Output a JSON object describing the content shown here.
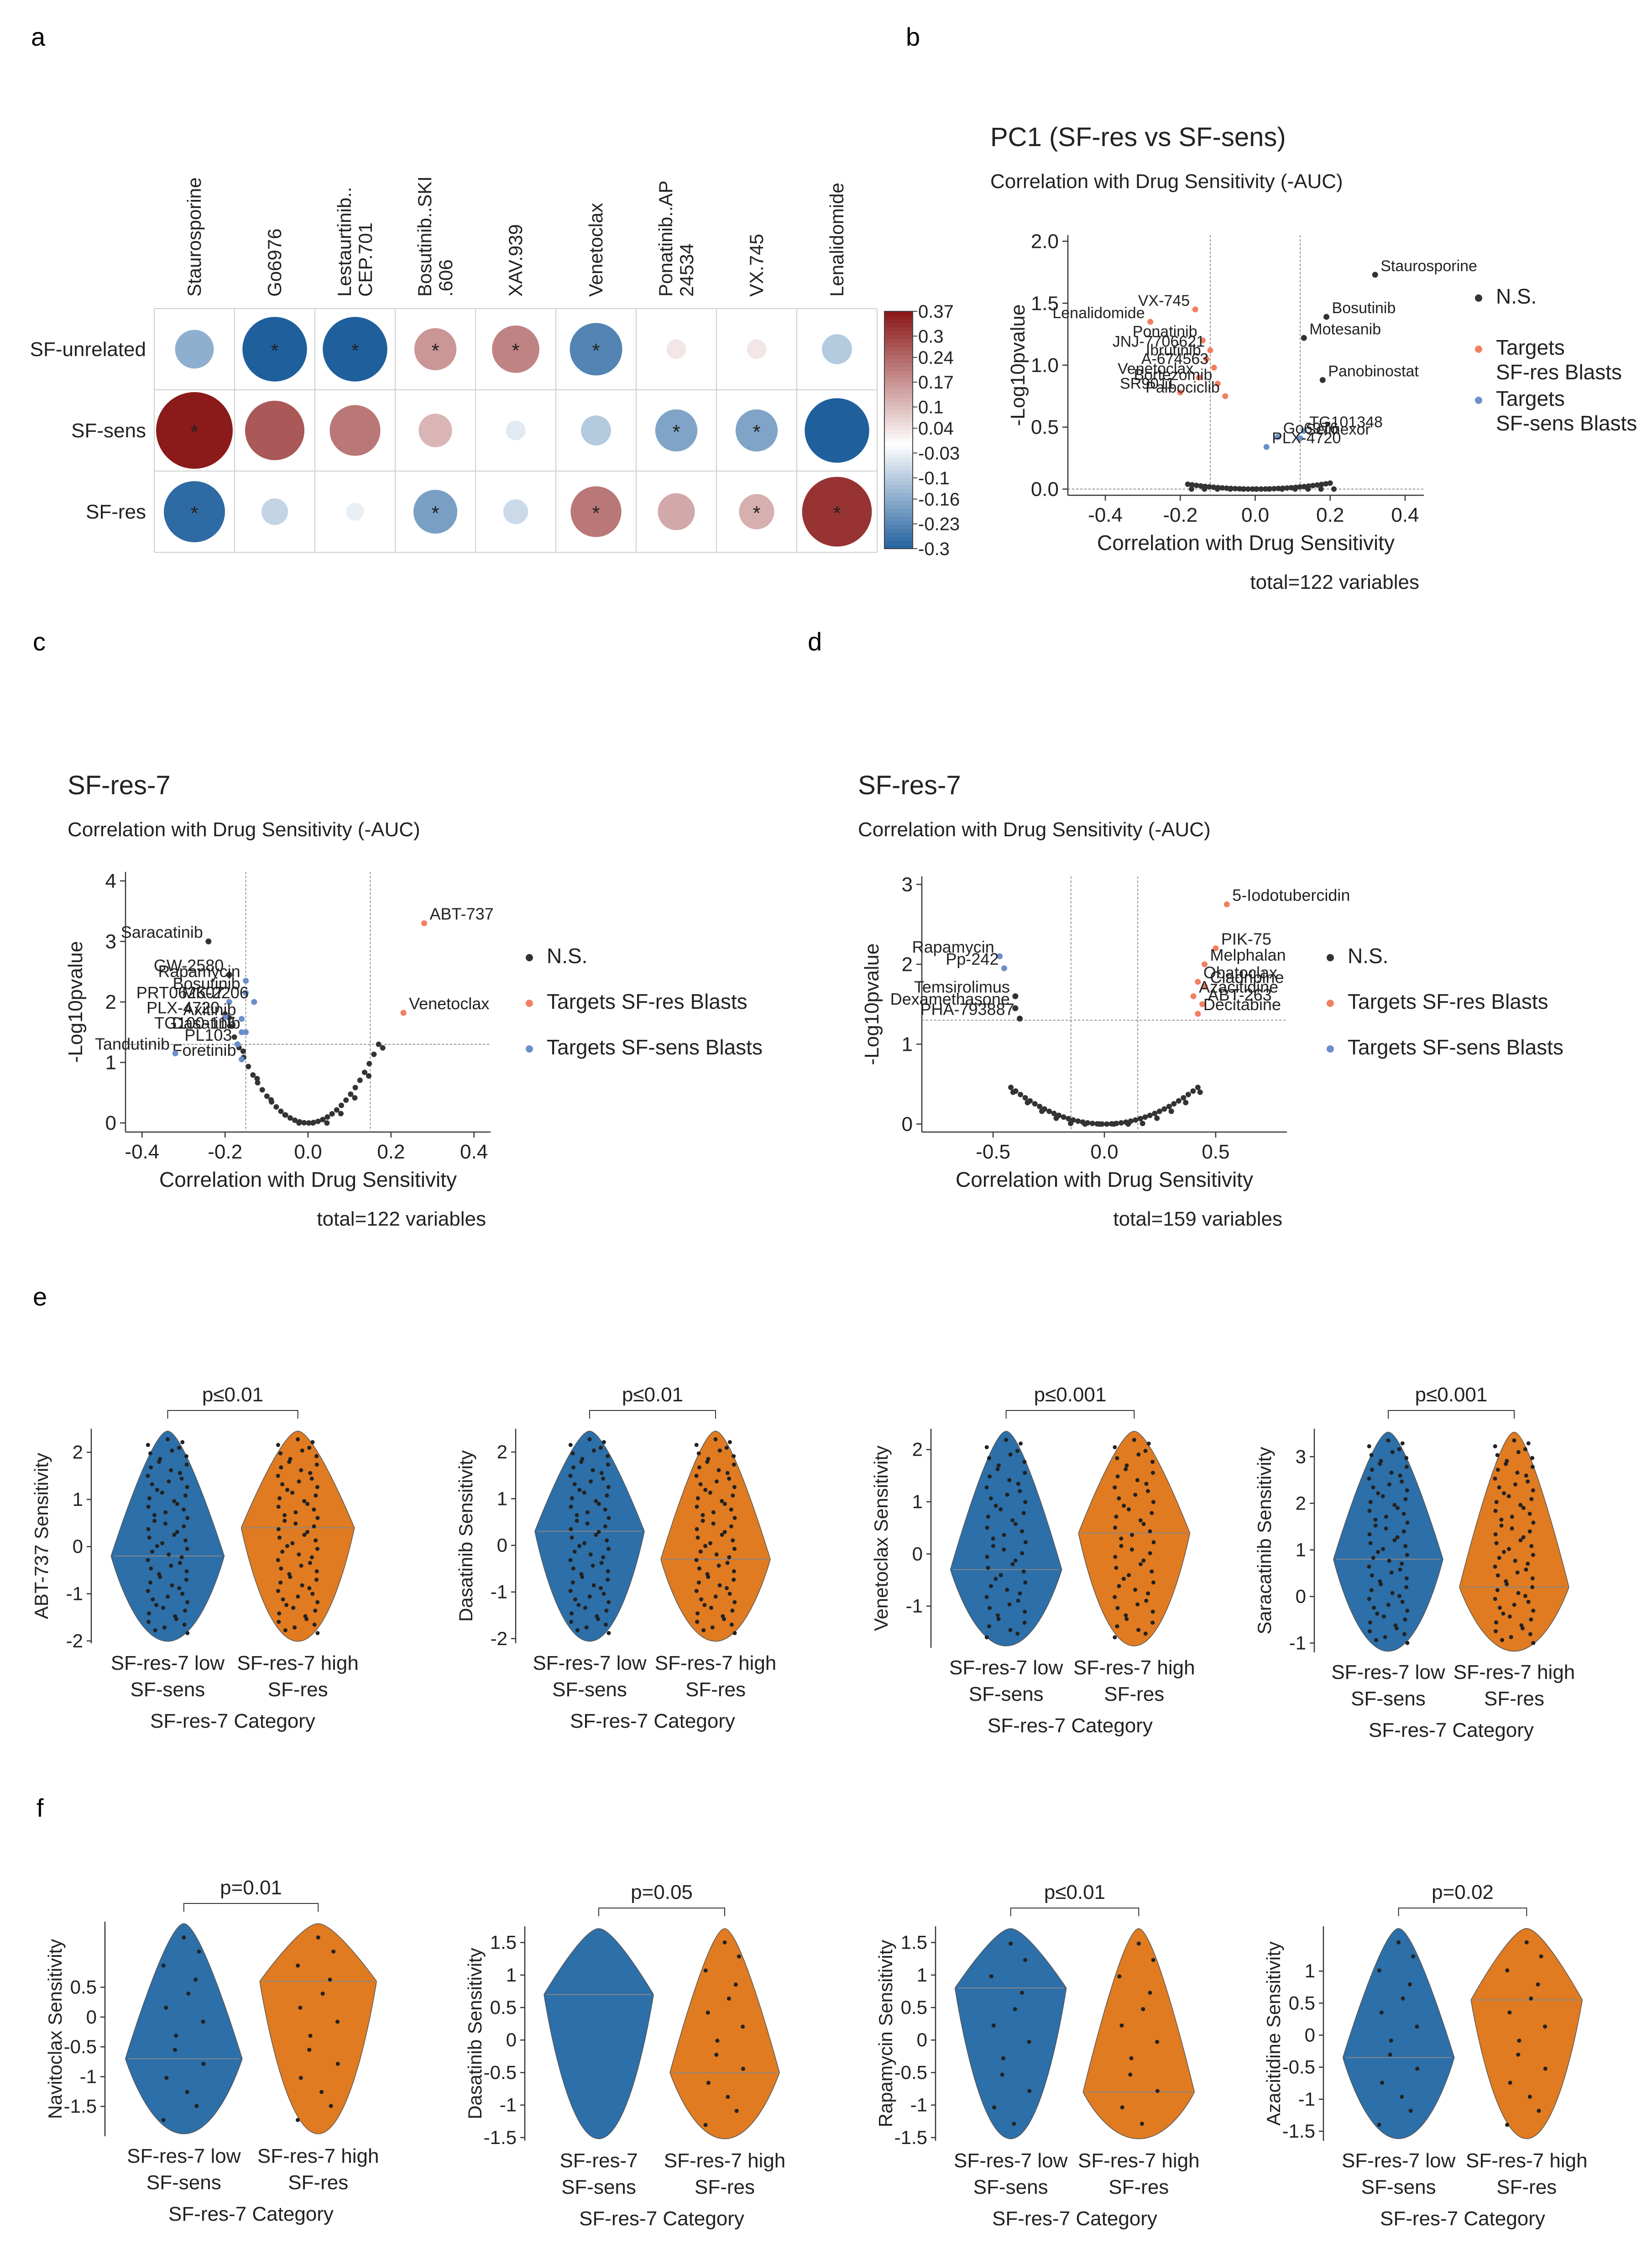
{
  "panel_letters": [
    "a",
    "b",
    "c",
    "d",
    "e",
    "f"
  ],
  "colors": {
    "blue": "#2d6fa8",
    "orange": "#e07b21",
    "ns": "#333333",
    "res_target": "#f08060",
    "sens_target": "#6b8fc9",
    "heat_pos": "#8b1a1a",
    "heat_neg": "#1f5f9c"
  },
  "chart_data": [
    {
      "panel": "a",
      "type": "heatmap",
      "rows": [
        "SF-unrelated",
        "SF-sens",
        "SF-res"
      ],
      "columns": [
        "Staurosporine",
        "Go6976",
        "Lestaurtinib..\nCEP.701",
        "Bosutinib..SKI\n.606",
        "XAV.939",
        "Venetoclax",
        "Ponatinib..AP\n24534",
        "VX.745",
        "Lenalidomide"
      ],
      "values": [
        [
          -0.15,
          -0.3,
          -0.3,
          0.17,
          0.2,
          -0.23,
          0.04,
          0.04,
          -0.1
        ],
        [
          0.37,
          0.27,
          0.22,
          0.12,
          -0.04,
          -0.1,
          -0.17,
          -0.17,
          -0.3
        ],
        [
          -0.28,
          -0.08,
          -0.03,
          -0.18,
          -0.07,
          0.22,
          0.14,
          0.13,
          0.33
        ]
      ],
      "significant": [
        [
          false,
          true,
          true,
          true,
          true,
          true,
          false,
          false,
          false
        ],
        [
          true,
          false,
          false,
          false,
          false,
          false,
          true,
          true,
          false
        ],
        [
          true,
          false,
          false,
          true,
          false,
          true,
          false,
          true,
          true
        ]
      ],
      "colorbar_ticks": [
        "0.37",
        "0.3",
        "0.24",
        "0.17",
        "0.1",
        "0.04",
        "-0.03",
        "-0.1",
        "-0.16",
        "-0.23",
        "-0.3"
      ],
      "colorbar_range": [
        -0.3,
        0.37
      ],
      "star": "*"
    },
    {
      "panel": "b",
      "type": "scatter",
      "title": "PC1 (SF-res vs SF-sens)",
      "subtitle": "Correlation with Drug Sensitivity (-AUC)",
      "xlabel": "Correlation with Drug Sensitivity",
      "ylabel": "-Log10pvalue",
      "xlim": [
        -0.5,
        0.45
      ],
      "ylim": [
        -0.05,
        2.05
      ],
      "xticks": [
        -0.4,
        -0.2,
        0.0,
        0.2,
        0.4
      ],
      "xtick_labels": [
        "-0.4",
        "-0.2",
        "0.0",
        "0.2",
        "0.4"
      ],
      "yticks": [
        0.0,
        0.5,
        1.0,
        1.5,
        2.0
      ],
      "ytick_labels": [
        "0.0",
        "0.5",
        "1.0",
        "1.5",
        "2.0"
      ],
      "vlines": [
        -0.12,
        0.12
      ],
      "hline": 0.0,
      "total": "total=122 variables",
      "legend": [
        {
          "label": "N.S.",
          "color": "#333333"
        },
        {
          "label": "Targets\nSF-res Blasts",
          "color": "#f08060"
        },
        {
          "label": "Targets\nSF-sens Blasts",
          "color": "#6b8fc9"
        }
      ],
      "ns_curve": {
        "a": 1.2,
        "b": 0.35,
        "xmin": -0.18,
        "xmax": 0.2,
        "n": 34
      },
      "points": [
        {
          "x": 0.32,
          "y": 1.73,
          "label": "Staurosporine",
          "group": "ns"
        },
        {
          "x": -0.16,
          "y": 1.45,
          "label": "VX-745",
          "group": "res"
        },
        {
          "x": -0.28,
          "y": 1.35,
          "label": "Lenalidomide",
          "group": "res"
        },
        {
          "x": -0.14,
          "y": 1.2,
          "label": "Ponatinib",
          "group": "res"
        },
        {
          "x": -0.12,
          "y": 1.12,
          "label": "JNJ-7706621",
          "group": "res"
        },
        {
          "x": -0.13,
          "y": 1.05,
          "label": "Ibrutinib",
          "group": "res"
        },
        {
          "x": -0.11,
          "y": 0.98,
          "label": "A-674563",
          "group": "res"
        },
        {
          "x": -0.15,
          "y": 0.9,
          "label": "Venetoclax",
          "group": "res"
        },
        {
          "x": -0.1,
          "y": 0.85,
          "label": "Bortezomib",
          "group": "res"
        },
        {
          "x": -0.2,
          "y": 0.78,
          "label": "SR9011",
          "group": "res"
        },
        {
          "x": -0.08,
          "y": 0.75,
          "label": "Palbociclib",
          "group": "res"
        },
        {
          "x": 0.19,
          "y": 1.39,
          "label": "Bosutinib",
          "group": "ns"
        },
        {
          "x": 0.13,
          "y": 1.22,
          "label": "Motesanib",
          "group": "ns"
        },
        {
          "x": 0.18,
          "y": 0.88,
          "label": "Panobinostat",
          "group": "ns"
        },
        {
          "x": 0.13,
          "y": 0.47,
          "label": "TG101348",
          "group": "sens"
        },
        {
          "x": 0.12,
          "y": 0.41,
          "label": "Selinexor",
          "group": "sens"
        },
        {
          "x": 0.06,
          "y": 0.42,
          "label": "Go6976",
          "group": "sens"
        },
        {
          "x": 0.03,
          "y": 0.34,
          "label": "PLX-4720",
          "group": "sens"
        }
      ]
    },
    {
      "panel": "c",
      "type": "scatter",
      "title": "SF-res-7",
      "subtitle": "Correlation with Drug Sensitivity (-AUC)",
      "xlabel": "Correlation with Drug Sensitivity",
      "ylabel": "-Log10pvalue",
      "xlim": [
        -0.44,
        0.44
      ],
      "ylim": [
        -0.15,
        4.15
      ],
      "xticks": [
        -0.4,
        -0.2,
        0.0,
        0.2,
        0.4
      ],
      "xtick_labels": [
        "-0.4",
        "-0.2",
        "0.0",
        "0.2",
        "0.4"
      ],
      "yticks": [
        0,
        1,
        2,
        3,
        4
      ],
      "ytick_labels": [
        "0",
        "1",
        "2",
        "3",
        "4"
      ],
      "vlines": [
        -0.15,
        0.15
      ],
      "hline": 1.3,
      "total": "total=122 variables",
      "legend": [
        {
          "label": "N.S.",
          "color": "#333333"
        },
        {
          "label": "Targets SF-res Blasts",
          "color": "#f08060"
        },
        {
          "label": "Targets SF-sens Blasts",
          "color": "#6b8fc9"
        }
      ],
      "ns_curve": {
        "a": 45,
        "b": 0.0,
        "xmin": -0.2,
        "xmax": 0.17,
        "n": 34
      },
      "points": [
        {
          "x": 0.28,
          "y": 3.3,
          "label": "ABT-737",
          "group": "res"
        },
        {
          "x": 0.23,
          "y": 1.82,
          "label": "Venetoclax",
          "group": "res"
        },
        {
          "x": -0.24,
          "y": 3.0,
          "label": "Saracatinib",
          "group": "ns"
        },
        {
          "x": -0.19,
          "y": 2.45,
          "label": "GW-2580",
          "group": "ns"
        },
        {
          "x": -0.15,
          "y": 2.35,
          "label": "Rapamycin",
          "group": "sens"
        },
        {
          "x": -0.15,
          "y": 2.15,
          "label": "Bosutinib",
          "group": "sens"
        },
        {
          "x": -0.19,
          "y": 2.0,
          "label": "PRT062607",
          "group": "sens"
        },
        {
          "x": -0.13,
          "y": 2.0,
          "label": "MK-2206",
          "group": "sens"
        },
        {
          "x": -0.2,
          "y": 1.75,
          "label": "PLX-4720",
          "group": "sens"
        },
        {
          "x": -0.16,
          "y": 1.72,
          "label": "Axitinib",
          "group": "sens"
        },
        {
          "x": -0.16,
          "y": 1.5,
          "label": "TG100-115",
          "group": "sens"
        },
        {
          "x": -0.15,
          "y": 1.5,
          "label": "Dasatinib",
          "group": "sens"
        },
        {
          "x": -0.17,
          "y": 1.3,
          "label": "PL103",
          "group": "sens"
        },
        {
          "x": -0.16,
          "y": 1.05,
          "label": "Foretinib",
          "group": "sens"
        },
        {
          "x": -0.32,
          "y": 1.15,
          "label": "Tandutinib",
          "group": "sens"
        }
      ]
    },
    {
      "panel": "d",
      "type": "scatter",
      "title": "SF-res-7",
      "subtitle": "Correlation with Drug Sensitivity (-AUC)",
      "xlabel": "Correlation with Drug Sensitivity",
      "ylabel": "-Log10pvalue",
      "xlim": [
        -0.82,
        0.82
      ],
      "ylim": [
        -0.1,
        3.1
      ],
      "xticks": [
        -0.5,
        0.0,
        0.5
      ],
      "xtick_labels": [
        "-0.5",
        "0.0",
        "0.5"
      ],
      "yticks": [
        0,
        1,
        2,
        3
      ],
      "ytick_labels": [
        "0",
        "1",
        "2",
        "3"
      ],
      "vlines": [
        -0.15,
        0.15
      ],
      "hline": 1.3,
      "total": "total=159 variables",
      "legend": [
        {
          "label": "N.S.",
          "color": "#333333"
        },
        {
          "label": "Targets SF-res Blasts",
          "color": "#f08060"
        },
        {
          "label": "Targets SF-sens Blasts",
          "color": "#6b8fc9"
        }
      ],
      "ns_curve": {
        "a": 2.6,
        "b": 0.6,
        "xmin": -0.42,
        "xmax": 0.42,
        "n": 40
      },
      "points": [
        {
          "x": 0.55,
          "y": 2.75,
          "label": "5-Iodotubercidin",
          "group": "res"
        },
        {
          "x": 0.5,
          "y": 2.2,
          "label": "PIK-75",
          "group": "res"
        },
        {
          "x": 0.45,
          "y": 2.0,
          "label": "Melphalan",
          "group": "res"
        },
        {
          "x": 0.42,
          "y": 1.78,
          "label": "Obatoclax",
          "group": "res"
        },
        {
          "x": 0.45,
          "y": 1.72,
          "label": "Cladribine",
          "group": "res"
        },
        {
          "x": 0.4,
          "y": 1.6,
          "label": "Azacitidine",
          "group": "res"
        },
        {
          "x": 0.44,
          "y": 1.5,
          "label": "ABT-263",
          "group": "res"
        },
        {
          "x": 0.42,
          "y": 1.38,
          "label": "Decitabine",
          "group": "res"
        },
        {
          "x": -0.47,
          "y": 2.1,
          "label": "Rapamycin",
          "group": "sens"
        },
        {
          "x": -0.45,
          "y": 1.95,
          "label": "Pp-242",
          "group": "sens"
        },
        {
          "x": -0.4,
          "y": 1.6,
          "label": "Temsirolimus",
          "group": "ns"
        },
        {
          "x": -0.4,
          "y": 1.45,
          "label": "Dexamethasone",
          "group": "ns"
        },
        {
          "x": -0.38,
          "y": 1.32,
          "label": "PHA-793887",
          "group": "ns"
        }
      ]
    },
    {
      "panel": "e",
      "type": "violin",
      "xlabel": "SF-res-7 Category",
      "categories": [
        "SF-res-7 low\nSF-sens",
        "SF-res-7 high\nSF-res"
      ],
      "plots": [
        {
          "ylabel": "ABT-737 Sensitivity",
          "pvalue": "p≤0.01",
          "ylim": [
            -2.05,
            2.5
          ],
          "yticks": [
            -2,
            -1,
            0,
            1,
            2
          ],
          "medians": [
            -0.2,
            0.4
          ],
          "n": 70
        },
        {
          "ylabel": "Dasatinib Sensitivity",
          "pvalue": "p≤0.01",
          "ylim": [
            -2.1,
            2.5
          ],
          "yticks": [
            -2,
            -1,
            0,
            1,
            2
          ],
          "medians": [
            0.3,
            -0.3
          ],
          "n": 70
        },
        {
          "ylabel": "Venetoclax Sensitivity",
          "pvalue": "p≤0.001",
          "ylim": [
            -1.8,
            2.4
          ],
          "yticks": [
            -1,
            0,
            1,
            2
          ],
          "medians": [
            -0.3,
            0.4
          ],
          "n": 55
        },
        {
          "ylabel": "Saracatinib Sensitivity",
          "pvalue": "p≤0.001",
          "ylim": [
            -1.2,
            3.6
          ],
          "yticks": [
            -1,
            0,
            1,
            2,
            3
          ],
          "medians": [
            0.8,
            0.2
          ],
          "n": 70
        }
      ]
    },
    {
      "panel": "f",
      "type": "violin",
      "xlabel": "SF-res-7 Category",
      "categories": [
        "SF-res-7 low\nSF-sens",
        "SF-res-7 high\nSF-res"
      ],
      "plots": [
        {
          "ylabel": "Navitoclax Sensitivity",
          "pvalue": "p=0.01",
          "ylim": [
            -2.0,
            1.6
          ],
          "yticks": [
            -1.5,
            -1.0,
            -0.5,
            0.0,
            0.5
          ],
          "medians": [
            -0.7,
            0.6
          ],
          "n": 14,
          "categories": [
            "SF-res-7 low\nSF-sens",
            "SF-res-7 high\nSF-res"
          ]
        },
        {
          "ylabel": "Dasatinib Sensitivity",
          "pvalue": "p=0.05",
          "ylim": [
            -1.55,
            1.75
          ],
          "yticks": [
            -1.5,
            -1.0,
            -0.5,
            0.0,
            0.5,
            1.0,
            1.5
          ],
          "medians": [
            0.7,
            -0.5
          ],
          "n": 0,
          "n2": 14,
          "categories": [
            "SF-res-7\nSF-sens",
            "SF-res-7 high\nSF-res"
          ]
        },
        {
          "ylabel": "Rapamycin Sensitivity",
          "pvalue": "p≤0.01",
          "ylim": [
            -1.55,
            1.75
          ],
          "yticks": [
            -1.5,
            -1.0,
            -0.5,
            0.0,
            0.5,
            1.0,
            1.5
          ],
          "medians": [
            0.8,
            -0.8
          ],
          "n": 12,
          "categories": [
            "SF-res-7 low\nSF-sens",
            "SF-res-7 high\nSF-res"
          ]
        },
        {
          "ylabel": "Azacitidine Sensitivity",
          "pvalue": "p=0.02",
          "ylim": [
            -1.65,
            1.7
          ],
          "yticks": [
            -1.5,
            -1.0,
            -0.5,
            0.0,
            0.5,
            1.0
          ],
          "medians": [
            -0.35,
            0.55
          ],
          "n": 14,
          "categories": [
            "SF-res-7 low\nSF-sens",
            "SF-res-7 high\nSF-res"
          ]
        }
      ]
    }
  ]
}
